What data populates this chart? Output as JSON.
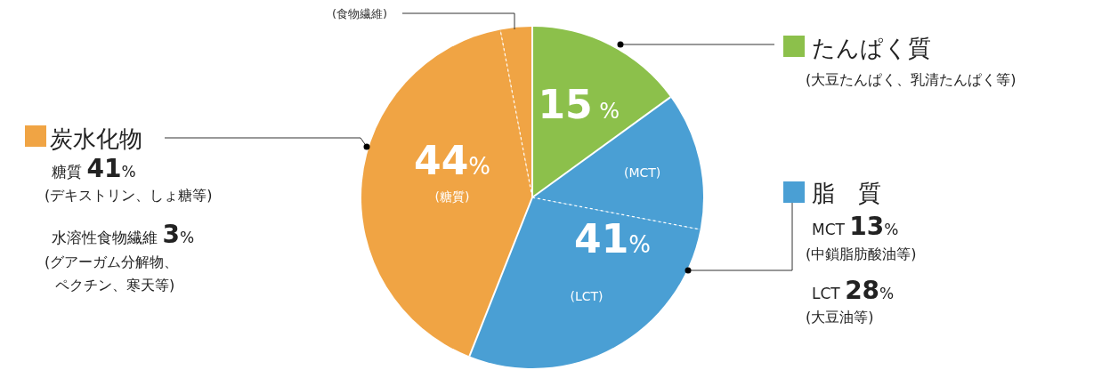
{
  "chart_data": {
    "type": "pie",
    "categories": [
      null,
      "(MCT)",
      "(LCT)",
      null,
      null
    ],
    "values": [
      15,
      13,
      28,
      41,
      3
    ],
    "colors": [
      "#8cc04b",
      "#4a9fd4",
      "#4a9fd4",
      "#f0a444",
      "#f0a444"
    ],
    "value_labels": [
      "15 %",
      null,
      null,
      null,
      null
    ],
    "annotations": [
      "(食物繊維)",
      "たんぱく質",
      "(大豆たんぱく、乳清たんぱく等)",
      "脂　質",
      "MCT 13%",
      "(中鎖脂肪酸油等)",
      "LCT 28%",
      "(大豆油等)",
      "炭水化物",
      "糖質 41%",
      "(デキストリン、しょ糖等)",
      "水溶性食物繊維 3%",
      "(グアーガム分解物、",
      "ペクチン、寒天等)",
      "44%",
      "(糖質)",
      "41%"
    ]
  }
}
